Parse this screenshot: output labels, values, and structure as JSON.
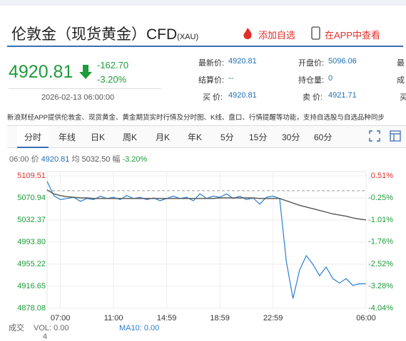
{
  "header": {
    "title": "伦敦金（现货黄金）CFD",
    "code": "(XAU)",
    "add_watchlist": "添加自选",
    "open_app": "在APP中查看"
  },
  "quote": {
    "price": "4920.81",
    "change": "-162.70",
    "change_pct": "-3.20%",
    "time": "2026-02-13 06:00:00"
  },
  "stats": [
    [
      {
        "label": "最新价:",
        "value": "4920.81"
      },
      {
        "label": "开盘价:",
        "value": "5096.06"
      },
      {
        "label": "最"
      }
    ],
    [
      {
        "label": "结算价:",
        "value": "--"
      },
      {
        "label": "持仓量:",
        "value": "0"
      },
      {
        "label": "成"
      }
    ],
    [
      {
        "label": "买 价:",
        "value": "4920.81"
      },
      {
        "label": "卖 价:",
        "value": "4921.71"
      },
      {
        "label": "买"
      }
    ]
  ],
  "notice": "新浪财经APP提供伦敦金、现货黄金、黄金期货实时行情及分时图、K线、盘口、行情提醒等功能，支持自选股与自选品种同步",
  "tabs": [
    "分时",
    "年线",
    "日K",
    "周K",
    "月K",
    "年K",
    "5分",
    "15分",
    "30分",
    "60分"
  ],
  "chart_info": {
    "time": "06:00",
    "price_label": "价",
    "price": "4920.81",
    "avg_label": "均",
    "avg": "5032.50",
    "change_label": "幅",
    "change_pct": "-3.20%"
  },
  "chart_data": {
    "type": "line",
    "categories": [
      null,
      null,
      "07:00",
      null,
      null,
      null,
      null,
      null,
      null,
      null,
      "11:00",
      null,
      null,
      null,
      null,
      null,
      null,
      null,
      "14:59",
      null,
      null,
      null,
      null,
      null,
      null,
      null,
      "18:59",
      null,
      null,
      null,
      null,
      null,
      null,
      null,
      "22:59",
      null,
      null,
      null,
      null,
      null,
      null,
      null,
      null,
      null,
      null,
      null,
      null,
      null,
      "06:00"
    ],
    "series": [
      {
        "color": "#2a7fd0",
        "values": [
          5100,
          5075,
          5068,
          5070,
          5072,
          5065,
          5070,
          5068,
          5074,
          5070,
          5072,
          5068,
          5075,
          5070,
          5072,
          5068,
          5071,
          5066,
          5070,
          5074,
          5070,
          5072,
          5066,
          5078,
          5070,
          5074,
          5072,
          5078,
          5070,
          5074,
          5068,
          5071,
          5060,
          5072,
          5074,
          5070,
          4960,
          4895,
          4945,
          4970,
          4955,
          4935,
          4950,
          4930,
          4922,
          4930,
          4918,
          4921,
          4920.81
        ]
      },
      {
        "color": "#555555",
        "values": [
          5085,
          5078,
          5075,
          5073,
          5072,
          5071,
          5071,
          5070,
          5070,
          5070,
          5070,
          5070,
          5070,
          5070,
          5070,
          5070,
          5070,
          5070,
          5070,
          5070,
          5070,
          5070,
          5070,
          5070,
          5070,
          5070,
          5071,
          5071,
          5071,
          5071,
          5071,
          5071,
          5070,
          5070,
          5070,
          5070,
          5066,
          5062,
          5058,
          5055,
          5052,
          5049,
          5046,
          5043,
          5041,
          5039,
          5036,
          5034,
          5032.5
        ]
      }
    ],
    "ylim": [
      4878.08,
      5109.51
    ],
    "yticks": [
      5109.51,
      5070.94,
      5032.37,
      {
        "value": 4993.8,
        "label": "4993.80"
      },
      4955.22,
      4916.65,
      4878.08
    ],
    "y2lim": [
      -4.04,
      0.51
    ],
    "y2ticks": [
      {
        "value": 0.51,
        "label": "0.51%"
      },
      {
        "value": -0.25,
        "label": "-0.25%"
      },
      {
        "value": -1.01,
        "label": "-1.01%"
      },
      {
        "value": -1.76,
        "label": "-1.76%"
      },
      {
        "value": -2.52,
        "label": "-2.52%"
      },
      {
        "value": -3.28,
        "label": "-3.28%"
      },
      {
        "value": -4.04,
        "label": "-4.04%"
      }
    ],
    "reference_line": 5083.51,
    "grid": true,
    "up_color": "#e0302a",
    "down_color": "#1e9b3a"
  },
  "footer": {
    "label": "成交",
    "vol": "VOL: 0.00",
    "ma10": "MA10: 0.00",
    "count": "4"
  }
}
